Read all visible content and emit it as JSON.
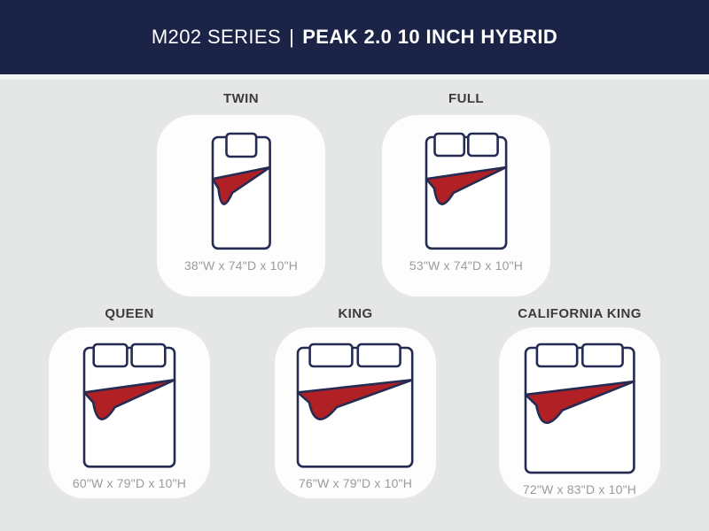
{
  "header": {
    "series": "M202 SERIES",
    "separator": "|",
    "model": "PEAK 2.0 10 INCH HYBRID"
  },
  "colors": {
    "header_bg": "#1b2347",
    "header_text": "#ffffff",
    "body_bg": "#e5e6e6",
    "strip_bg": "#f3f4f7",
    "card_bg": "#fdfdfd",
    "outline_navy": "#252b52",
    "blanket_red": "#b12025",
    "pillow_fill": "#ffffff",
    "label_text": "#3b3b3b",
    "dims_text": "#9b9b9b"
  },
  "icons": {
    "bed_icon": "mattress with pillows and folded red blanket"
  },
  "sizes": [
    {
      "id": "twin",
      "label": "TWIN",
      "dimensions": "38\"W x 74\"D x 10\"H",
      "width_in": 38,
      "depth_in": 74,
      "height_in": 10,
      "pillows": 1
    },
    {
      "id": "full",
      "label": "FULL",
      "dimensions": "53\"W x 74\"D x 10\"H",
      "width_in": 53,
      "depth_in": 74,
      "height_in": 10,
      "pillows": 2
    },
    {
      "id": "queen",
      "label": "QUEEN",
      "dimensions": "60\"W x 79\"D x 10\"H",
      "width_in": 60,
      "depth_in": 79,
      "height_in": 10,
      "pillows": 2
    },
    {
      "id": "king",
      "label": "KING",
      "dimensions": "76\"W x 79\"D x 10\"H",
      "width_in": 76,
      "depth_in": 79,
      "height_in": 10,
      "pillows": 2
    },
    {
      "id": "california-king",
      "label": "CALIFORNIA KING",
      "dimensions": "72\"W x 83\"D x 10\"H",
      "width_in": 72,
      "depth_in": 83,
      "height_in": 10,
      "pillows": 2
    }
  ]
}
